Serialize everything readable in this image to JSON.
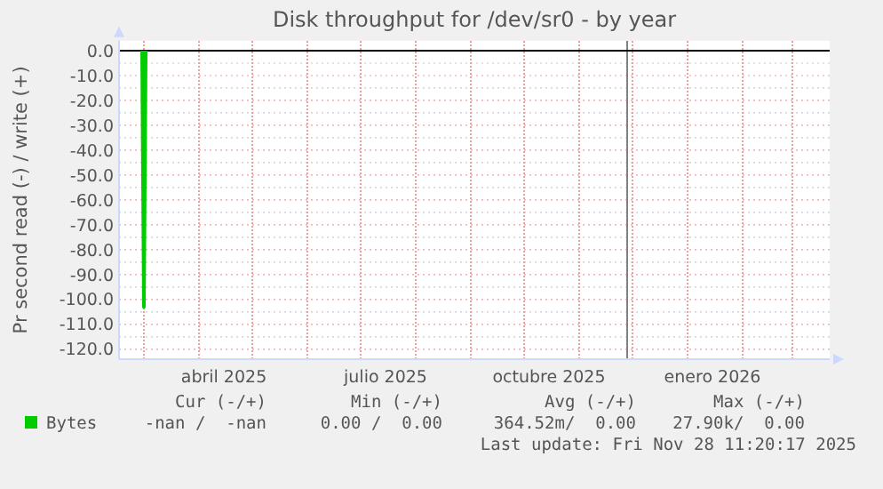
{
  "chart_data": {
    "type": "line",
    "title": "Disk throughput for /dev/sr0 - by year",
    "ylabel": "Pr second read (-) / write (+)",
    "x": [
      "2025-02-28",
      "2025-03-01",
      "2025-03-02"
    ],
    "series": [
      {
        "name": "Bytes",
        "color": "#00cc00",
        "values": [
          0,
          -103,
          0
        ]
      }
    ],
    "xlim": [
      "2025-02-15",
      "2026-03-22"
    ],
    "xticks": [
      {
        "value": "2025-03-01",
        "label": null
      },
      {
        "value": "2025-04-01",
        "label": null
      },
      {
        "value": "2025-05-01",
        "label": null
      },
      {
        "value": "2025-06-01",
        "label": null
      },
      {
        "value": "2025-07-01",
        "label": null
      },
      {
        "value": "2025-08-01",
        "label": null
      },
      {
        "value": "2025-09-01",
        "label": null
      },
      {
        "value": "2025-10-01",
        "label": null
      },
      {
        "value": "2025-11-01",
        "label": null
      },
      {
        "value": "2025-12-01",
        "label": null
      },
      {
        "value": "2026-01-01",
        "label": null
      },
      {
        "value": "2026-02-01",
        "label": null
      },
      {
        "value": "2026-03-01",
        "label": null
      },
      {
        "value": "2025-04-15",
        "label": "abril 2025"
      },
      {
        "value": "2025-07-15",
        "label": "julio 2025"
      },
      {
        "value": "2025-10-15",
        "label": "octubre 2025"
      },
      {
        "value": "2026-01-15",
        "label": "enero 2026"
      }
    ],
    "ylim": [
      -124,
      4
    ],
    "yticks": [
      {
        "value": 0,
        "label": "0.0"
      },
      {
        "value": -10,
        "label": "-10.0"
      },
      {
        "value": -20,
        "label": "-20.0"
      },
      {
        "value": -30,
        "label": "-30.0"
      },
      {
        "value": -40,
        "label": "-40.0"
      },
      {
        "value": -50,
        "label": "-50.0"
      },
      {
        "value": -60,
        "label": "-60.0"
      },
      {
        "value": -70,
        "label": "-70.0"
      },
      {
        "value": -80,
        "label": "-80.0"
      },
      {
        "value": -90,
        "label": "-90.0"
      },
      {
        "value": -100,
        "label": "-100.0"
      },
      {
        "value": -110,
        "label": "-110.0"
      },
      {
        "value": -120,
        "label": "-120.0"
      },
      {
        "value": -5,
        "label": null
      },
      {
        "value": -15,
        "label": null
      },
      {
        "value": -25,
        "label": null
      },
      {
        "value": -35,
        "label": null
      },
      {
        "value": -45,
        "label": null
      },
      {
        "value": -55,
        "label": null
      },
      {
        "value": -65,
        "label": null
      },
      {
        "value": -75,
        "label": null
      },
      {
        "value": -85,
        "label": null
      },
      {
        "value": -95,
        "label": null
      },
      {
        "value": -105,
        "label": null
      },
      {
        "value": -115,
        "label": null
      }
    ],
    "grid": true,
    "legend": "bottom left",
    "ref_lines": [
      {
        "axis": "x",
        "value": "2025-11-28",
        "color": "#808080"
      }
    ],
    "annotations": [
      "Cur (-/+)",
      "Min (-/+)",
      "Avg (-/+)",
      "Max (-/+)",
      "-nan /  -nan",
      "0.00 /  0.00",
      "364.52m/  0.00",
      "27.90k/  0.00",
      "Last update: Fri Nov 28 11:20:17 2025"
    ]
  }
}
